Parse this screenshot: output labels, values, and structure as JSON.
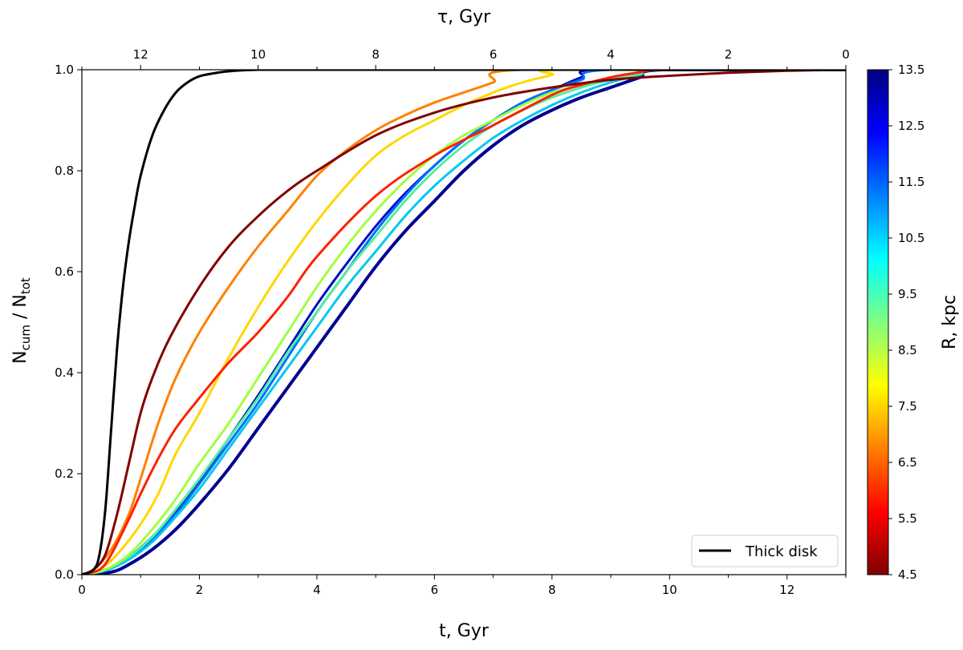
{
  "chart_data": {
    "type": "line",
    "title": "",
    "xlabel_main": "t",
    "xlabel_unit": "Gyr",
    "xlabel_top_main": "τ",
    "xlabel_top_unit": "Gyr",
    "ylabel_parts": {
      "n1": "N",
      "sub1": "cum",
      "slash": " / ",
      "n2": "N",
      "sub2": "tot"
    },
    "xlim": [
      0,
      13
    ],
    "ylim": [
      0,
      1.0
    ],
    "x_ticks": [
      0,
      2,
      4,
      6,
      8,
      10,
      12
    ],
    "x_ticks_top": [
      12,
      10,
      8,
      6,
      4,
      2,
      0
    ],
    "y_ticks": [
      "0.0",
      "0.2",
      "0.4",
      "0.6",
      "0.8",
      "1.0"
    ],
    "top_axis_relation": "tau = 13 - t",
    "legend": {
      "label": "Thick disk",
      "color": "#000000",
      "location": "lower right"
    },
    "colorbar": {
      "label_main": "R",
      "label_unit": "kpc",
      "range": [
        4.5,
        13.5
      ],
      "ticks": [
        "4.5",
        "5.5",
        "6.5",
        "7.5",
        "8.5",
        "9.5",
        "10.5",
        "11.5",
        "12.5",
        "13.5"
      ],
      "colormap_stops": [
        "#800000",
        "#ff0000",
        "#ff8000",
        "#ffff00",
        "#80ff80",
        "#00ffff",
        "#0080ff",
        "#0000ff",
        "#000080"
      ]
    },
    "series": [
      {
        "name": "Thick disk",
        "color": "#000000",
        "x": [
          0,
          0.2,
          0.3,
          0.4,
          0.5,
          0.6,
          0.7,
          0.8,
          0.9,
          1.0,
          1.2,
          1.4,
          1.6,
          1.8,
          2.0,
          2.3,
          2.6,
          3.0,
          3.5,
          13.0
        ],
        "y": [
          0,
          0.01,
          0.04,
          0.13,
          0.29,
          0.45,
          0.57,
          0.66,
          0.73,
          0.79,
          0.87,
          0.92,
          0.955,
          0.975,
          0.987,
          0.994,
          0.998,
          1.0,
          1.0,
          1.0
        ]
      },
      {
        "name": "R=4.5",
        "color": "#800000",
        "x": [
          0,
          0.2,
          0.4,
          0.6,
          0.8,
          1.0,
          1.2,
          1.5,
          2.0,
          2.5,
          3.0,
          3.5,
          4.0,
          5.0,
          6.0,
          7.0,
          8.0,
          9.0,
          10.0,
          11.0,
          12.0,
          13.0
        ],
        "y": [
          0,
          0.01,
          0.04,
          0.12,
          0.22,
          0.32,
          0.39,
          0.47,
          0.57,
          0.65,
          0.71,
          0.76,
          0.8,
          0.87,
          0.915,
          0.945,
          0.965,
          0.98,
          0.988,
          0.994,
          0.998,
          1.0
        ]
      },
      {
        "name": "R=5.5",
        "color": "#ff2000",
        "x": [
          0,
          0.3,
          0.5,
          0.8,
          1.0,
          1.3,
          1.6,
          2.0,
          2.5,
          3.0,
          3.5,
          4.0,
          5.0,
          6.0,
          7.0,
          8.0,
          8.5,
          9.0,
          9.5,
          10.0,
          13.0
        ],
        "y": [
          0,
          0.01,
          0.04,
          0.11,
          0.16,
          0.23,
          0.29,
          0.35,
          0.42,
          0.48,
          0.55,
          0.63,
          0.75,
          0.83,
          0.89,
          0.95,
          0.97,
          0.985,
          0.995,
          1.0,
          1.0
        ]
      },
      {
        "name": "R=6.5",
        "color": "#ff8000",
        "x": [
          0,
          0.2,
          0.5,
          0.8,
          1.0,
          1.3,
          1.6,
          2.0,
          2.5,
          3.0,
          3.5,
          4.0,
          4.5,
          5.0,
          5.5,
          6.0,
          6.5,
          7.0,
          7.5,
          13.0
        ],
        "y": [
          0,
          0.01,
          0.05,
          0.12,
          0.19,
          0.3,
          0.39,
          0.48,
          0.57,
          0.65,
          0.72,
          0.79,
          0.84,
          0.88,
          0.91,
          0.935,
          0.955,
          0.975,
          1.0,
          1.0
        ]
      },
      {
        "name": "R=7.5",
        "color": "#ffd700",
        "x": [
          0,
          0.3,
          0.6,
          1.0,
          1.3,
          1.6,
          2.0,
          2.5,
          3.0,
          3.5,
          4.0,
          4.5,
          5.0,
          5.5,
          6.0,
          6.5,
          7.0,
          7.5,
          8.0,
          8.2,
          13.0
        ],
        "y": [
          0,
          0.01,
          0.04,
          0.1,
          0.16,
          0.24,
          0.32,
          0.43,
          0.53,
          0.62,
          0.7,
          0.77,
          0.83,
          0.87,
          0.9,
          0.93,
          0.955,
          0.975,
          0.99,
          1.0,
          1.0
        ]
      },
      {
        "name": "R=8.5",
        "color": "#a0ff40",
        "x": [
          0,
          0.4,
          0.8,
          1.2,
          1.6,
          2.0,
          2.5,
          3.0,
          3.5,
          4.0,
          4.5,
          5.0,
          5.5,
          6.0,
          6.5,
          7.0,
          7.5,
          8.0,
          8.5,
          9.0,
          9.5,
          9.8,
          13.0
        ],
        "y": [
          0,
          0.01,
          0.04,
          0.09,
          0.15,
          0.22,
          0.3,
          0.39,
          0.48,
          0.57,
          0.65,
          0.72,
          0.78,
          0.83,
          0.87,
          0.9,
          0.93,
          0.955,
          0.97,
          0.985,
          0.995,
          1.0,
          1.0
        ]
      },
      {
        "name": "R=9.5",
        "color": "#50f0a0",
        "x": [
          0,
          0.4,
          0.8,
          1.2,
          1.6,
          2.0,
          2.5,
          3.0,
          3.5,
          4.0,
          4.5,
          5.0,
          5.5,
          6.0,
          6.5,
          7.0,
          7.5,
          8.0,
          8.5,
          9.0,
          9.5,
          9.8,
          13.0
        ],
        "y": [
          0,
          0.01,
          0.035,
          0.075,
          0.13,
          0.19,
          0.27,
          0.35,
          0.44,
          0.52,
          0.6,
          0.67,
          0.74,
          0.8,
          0.85,
          0.89,
          0.92,
          0.945,
          0.965,
          0.98,
          0.992,
          1.0,
          1.0
        ]
      },
      {
        "name": "R=10.5",
        "color": "#00c8f0",
        "x": [
          0,
          0.4,
          0.8,
          1.2,
          1.6,
          2.0,
          2.5,
          3.0,
          3.5,
          4.0,
          4.5,
          5.0,
          5.5,
          6.0,
          6.5,
          7.0,
          7.5,
          8.0,
          8.5,
          9.0,
          9.5,
          9.9,
          13.0
        ],
        "y": [
          0,
          0.008,
          0.03,
          0.065,
          0.115,
          0.17,
          0.25,
          0.33,
          0.41,
          0.49,
          0.57,
          0.64,
          0.71,
          0.77,
          0.82,
          0.865,
          0.9,
          0.93,
          0.955,
          0.975,
          0.99,
          1.0,
          1.0
        ]
      },
      {
        "name": "R=11.5",
        "color": "#0070ff",
        "x": [
          0,
          0.4,
          0.8,
          1.2,
          1.6,
          2.0,
          2.5,
          3.0,
          3.5,
          4.0,
          4.5,
          5.0,
          5.5,
          6.0,
          6.5,
          7.0,
          7.5,
          8.0,
          8.5,
          9.0,
          13.0
        ],
        "y": [
          0,
          0.01,
          0.035,
          0.07,
          0.12,
          0.18,
          0.26,
          0.34,
          0.43,
          0.52,
          0.6,
          0.68,
          0.75,
          0.81,
          0.86,
          0.9,
          0.935,
          0.96,
          0.98,
          1.0,
          1.0
        ]
      },
      {
        "name": "R=12.5",
        "color": "#0010c0",
        "x": [
          0,
          0.4,
          0.8,
          1.2,
          1.6,
          2.0,
          2.5,
          3.0,
          3.5,
          4.0,
          4.5,
          5.0,
          5.5,
          6.0,
          6.5,
          7.0,
          7.5,
          8.0,
          8.5,
          8.9,
          13.0
        ],
        "y": [
          0,
          0.01,
          0.035,
          0.075,
          0.125,
          0.185,
          0.27,
          0.355,
          0.445,
          0.535,
          0.615,
          0.69,
          0.755,
          0.81,
          0.86,
          0.9,
          0.935,
          0.96,
          0.985,
          1.0,
          1.0
        ]
      },
      {
        "name": "R=13.5",
        "color": "#000090",
        "x": [
          0,
          0.5,
          0.8,
          1.2,
          1.6,
          2.0,
          2.5,
          3.0,
          3.5,
          4.0,
          4.5,
          5.0,
          5.5,
          6.0,
          6.5,
          7.0,
          7.5,
          8.0,
          8.5,
          9.0,
          9.5,
          9.9,
          13.0
        ],
        "y": [
          0,
          0.005,
          0.02,
          0.05,
          0.09,
          0.14,
          0.21,
          0.29,
          0.37,
          0.45,
          0.53,
          0.61,
          0.68,
          0.74,
          0.8,
          0.85,
          0.89,
          0.92,
          0.945,
          0.965,
          0.985,
          1.0,
          1.0
        ]
      }
    ]
  }
}
